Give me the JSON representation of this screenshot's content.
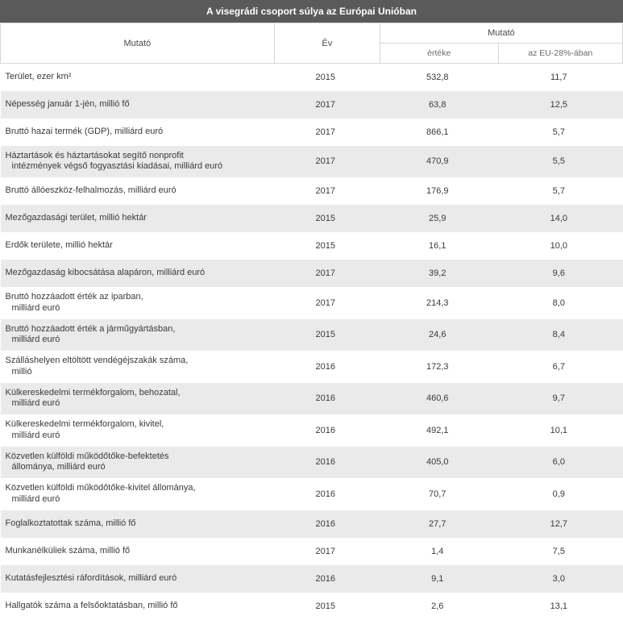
{
  "table": {
    "type": "table",
    "title": "A visegrádi csoport súlya az Európai Unióban",
    "colors": {
      "title_bg": "#5a5a5a",
      "title_fg": "#ffffff",
      "header_border": "#d8d8d8",
      "row_alt_bg": "#eaeaea",
      "text": "#3a3a3a"
    },
    "header": {
      "indicator": "Mutató",
      "year": "Év",
      "value_group": "Mutató",
      "value": "értéke",
      "pct": "az EU-28%-ában"
    },
    "rows": [
      {
        "indicator": "Terület, ezer km²",
        "year": "2015",
        "value": "532,8",
        "pct": "11,7"
      },
      {
        "indicator": "Népesség január 1-jén, millió fő",
        "year": "2017",
        "value": "63,8",
        "pct": "12,5"
      },
      {
        "indicator": "Bruttó hazai termék (GDP), milliárd euró",
        "year": "2017",
        "value": "866,1",
        "pct": "5,7"
      },
      {
        "indicator": "Háztartások és háztartásokat segítő nonprofit",
        "indicator2": "intézmények végső fogyasztási kiadásai, milliárd euró",
        "year": "2017",
        "value": "470,9",
        "pct": "5,5"
      },
      {
        "indicator": "Bruttó állóeszköz-felhalmozás, milliárd euró",
        "year": "2017",
        "value": "176,9",
        "pct": "5,7"
      },
      {
        "indicator": "Mezőgazdasági terület, millió hektár",
        "year": "2015",
        "value": "25,9",
        "pct": "14,0"
      },
      {
        "indicator": "Erdők területe, millió hektár",
        "year": "2015",
        "value": "16,1",
        "pct": "10,0"
      },
      {
        "indicator": "Mezőgazdaság kibocsátása alapáron, milliárd euró",
        "year": "2017",
        "value": "39,2",
        "pct": "9,6"
      },
      {
        "indicator": "Bruttó hozzáadott érték az iparban,",
        "indicator2": "milliárd euró",
        "year": "2017",
        "value": "214,3",
        "pct": "8,0"
      },
      {
        "indicator": "Bruttó hozzáadott érték a járműgyártásban,",
        "indicator2": "milliárd euró",
        "year": "2015",
        "value": "24,6",
        "pct": "8,4"
      },
      {
        "indicator": "Szálláshelyen eltöltött vendégéjszakák száma,",
        "indicator2": "millió",
        "year": "2016",
        "value": "172,3",
        "pct": "6,7"
      },
      {
        "indicator": "Külkereskedelmi termékforgalom, behozatal,",
        "indicator2": "milliárd euró",
        "year": "2016",
        "value": "460,6",
        "pct": "9,7"
      },
      {
        "indicator": "Külkereskedelmi termékforgalom, kivitel,",
        "indicator2": "milliárd euró",
        "year": "2016",
        "value": "492,1",
        "pct": "10,1"
      },
      {
        "indicator": "Közvetlen külföldi működőtőke-befektetés",
        "indicator2": "állománya, milliárd euró",
        "year": "2016",
        "value": "405,0",
        "pct": "6,0"
      },
      {
        "indicator": "Közvetlen külföldi működőtőke-kivitel állománya,",
        "indicator2": "milliárd euró",
        "year": "2016",
        "value": "70,7",
        "pct": "0,9"
      },
      {
        "indicator": "Foglalkoztatottak száma, millió fő",
        "year": "2016",
        "value": "27,7",
        "pct": "12,7"
      },
      {
        "indicator": "Munkanélküliek száma, millió fő",
        "year": "2017",
        "value": "1,4",
        "pct": "7,5"
      },
      {
        "indicator": "Kutatásfejlesztési ráfordítások, milliárd euró",
        "year": "2016",
        "value": "9,1",
        "pct": "3,0"
      },
      {
        "indicator": "Hallgatók száma a felsőoktatásban, millió fő",
        "year": "2015",
        "value": "2,6",
        "pct": "13,1"
      }
    ]
  }
}
